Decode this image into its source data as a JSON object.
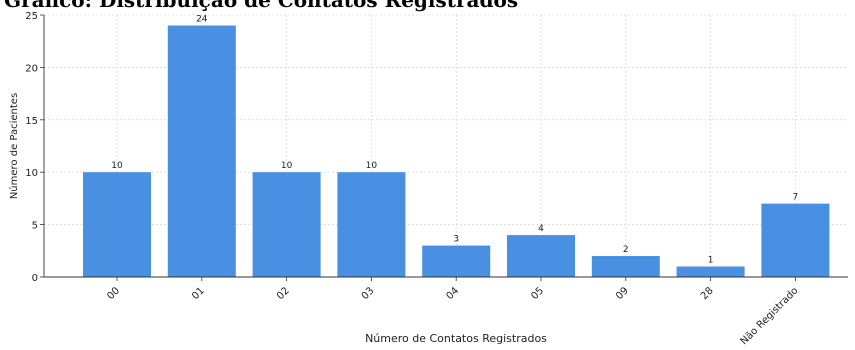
{
  "chart_data": {
    "type": "bar",
    "title": "Gráfico: Distribuição de Contatos Registrados",
    "xlabel": "Número de Contatos Registrados",
    "ylabel": "Número de Pacientes",
    "categories": [
      "00",
      "01",
      "02",
      "03",
      "04",
      "05",
      "09",
      "28",
      "Não Registrado"
    ],
    "values": [
      10,
      24,
      10,
      10,
      3,
      4,
      2,
      1,
      7
    ],
    "ylim": [
      0,
      25
    ],
    "yticks": [
      0,
      5,
      10,
      15,
      20,
      25
    ],
    "grid": true,
    "bar_color": "#4a90e2",
    "grid_color": "#cccccc"
  }
}
